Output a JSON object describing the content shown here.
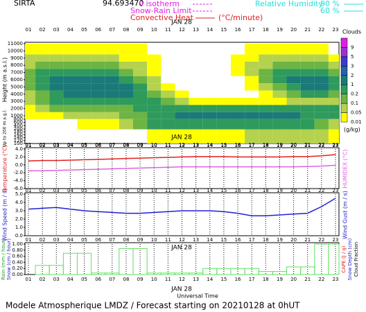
{
  "station": "SIRTA",
  "coords": "94.693470",
  "legend": {
    "isotherm": "0 isotherm",
    "snow_rain": "Snow-Rain Limit",
    "convective": "Convective Heat",
    "convective_unit": "(°C/minute)",
    "rh": "Relative Humidity",
    "rh_high": "90 %",
    "rh_low": "60 %"
  },
  "date": "JAN 28",
  "x_label": "Universal Time",
  "footer": "Modele Atmospherique LMDZ / Forecast starting on 20210128 at 0hUT",
  "chart_data": [
    {
      "type": "heatmap",
      "y_label": "Height (m a.s.l.)",
      "y_label_low": "Up to 200 m a.g.l.",
      "categories": [
        "01",
        "02",
        "03",
        "04",
        "05",
        "06",
        "07",
        "08",
        "09",
        "10",
        "11",
        "12",
        "13",
        "14",
        "15",
        "16",
        "17",
        "18",
        "19",
        "20",
        "21",
        "22",
        "23"
      ],
      "heights": [
        10000,
        9000,
        8000,
        7000,
        6000,
        5000,
        4000,
        3000,
        2000,
        1000,
        600,
        150
      ],
      "values": [
        [
          0.01,
          0.01,
          0.01,
          0.01,
          0.01,
          0.01,
          0.01,
          0.01,
          0.01,
          0,
          0,
          0,
          0,
          0,
          0,
          0,
          0.01,
          0.01,
          0.01,
          0.01,
          0.01,
          0.01,
          0
        ],
        [
          0.05,
          0.05,
          0.05,
          0.05,
          0.05,
          0.05,
          0.05,
          0.01,
          0.01,
          0.01,
          0,
          0,
          0,
          0,
          0,
          0.01,
          0.01,
          0.05,
          0.05,
          0.05,
          0.05,
          0.05,
          0.01
        ],
        [
          0.05,
          0.1,
          0.1,
          0.1,
          0.1,
          0.1,
          0.1,
          0.05,
          0.05,
          0.01,
          0,
          0,
          0,
          0,
          0,
          0.01,
          0.05,
          0.05,
          0.1,
          0.1,
          0.1,
          0.1,
          0.05
        ],
        [
          0.1,
          0.2,
          0.2,
          0.2,
          0.2,
          0.2,
          0.2,
          0.1,
          0.05,
          0.01,
          0,
          0,
          0,
          0,
          0,
          0.01,
          0.05,
          0.1,
          0.2,
          0.2,
          0.2,
          0.2,
          0.1
        ],
        [
          0.1,
          0.2,
          1,
          1,
          1,
          1,
          1,
          0.2,
          0.1,
          0.05,
          0,
          0,
          0,
          0,
          0,
          0,
          0.01,
          0.1,
          0.2,
          1,
          1,
          1,
          0.2
        ],
        [
          0.1,
          0.2,
          1,
          1,
          1,
          1,
          1,
          1,
          0.2,
          0.05,
          0.01,
          0,
          0,
          0,
          0,
          0,
          0.01,
          0.05,
          0.1,
          0.2,
          1,
          1,
          0.2
        ],
        [
          0.05,
          0.1,
          0.2,
          1,
          1,
          1,
          1,
          1,
          0.2,
          0.1,
          0.05,
          0.01,
          0,
          0,
          0,
          0,
          0,
          0.01,
          0.05,
          0.1,
          0.2,
          0.2,
          0.1
        ],
        [
          0.05,
          0.1,
          0.2,
          0.2,
          0.2,
          0.2,
          0.2,
          0.2,
          0.2,
          0.2,
          0.1,
          0.05,
          0.01,
          0.01,
          0.01,
          0.01,
          0.01,
          0.01,
          0.01,
          0.05,
          0.05,
          0.05,
          0.05
        ],
        [
          0.01,
          0.05,
          0.1,
          0.1,
          0.1,
          0.1,
          0.1,
          0.1,
          0.2,
          0.2,
          0.2,
          0.2,
          0.2,
          0.2,
          0.2,
          0.2,
          0.2,
          0.2,
          0.2,
          0.2,
          0.2,
          0.2,
          0.2
        ],
        [
          0.01,
          0.01,
          0.01,
          0.05,
          0.05,
          0.05,
          0.05,
          0.1,
          0.1,
          0.2,
          0.2,
          1,
          1,
          1,
          1,
          1,
          1,
          1,
          1,
          1,
          0.2,
          0.2,
          0.2
        ],
        [
          0,
          0,
          0,
          0,
          0.01,
          0.01,
          0.01,
          0.05,
          0.1,
          0.2,
          0.2,
          0.2,
          0.2,
          0.2,
          0.2,
          0.2,
          0.2,
          0.2,
          0.2,
          0.2,
          0.2,
          0.1,
          0.05
        ],
        [
          0,
          0,
          0,
          0,
          0,
          0,
          0,
          0,
          0,
          0.01,
          0.01,
          0.01,
          0.01,
          0.01,
          0.01,
          0.01,
          0.05,
          0.05,
          0.05,
          0.05,
          0.05,
          0.05,
          0.01
        ]
      ],
      "ylim": [
        100,
        11000
      ],
      "yticks": [
        11000,
        10000,
        9000,
        8000,
        7000,
        6000,
        5000,
        4000,
        3000,
        2000,
        1000,
        800,
        600,
        400,
        200,
        180,
        160,
        140,
        120,
        100
      ],
      "colorbar_title": "Clouds",
      "colorbar_unit": "(g/kg)",
      "levels": [
        0.01,
        0.05,
        0.1,
        0.2,
        1,
        2,
        3,
        5,
        9
      ],
      "colors": [
        "#ffff00",
        "#b4d24e",
        "#6cb443",
        "#2e9a5c",
        "#1a7a78",
        "#2b5fa8",
        "#3a3ad0",
        "#9a30d0",
        "#e020e0"
      ]
    },
    {
      "type": "line",
      "y_label": "Temperature (°C)",
      "y2_label": "HUMIDEX (°C)",
      "categories": [
        "01",
        "02",
        "03",
        "04",
        "05",
        "06",
        "07",
        "08",
        "09",
        "10",
        "11",
        "12",
        "13",
        "14",
        "15",
        "16",
        "17",
        "18",
        "19",
        "20",
        "21",
        "22",
        "23"
      ],
      "series": [
        {
          "name": "Temperature",
          "color": "#e02020",
          "values": [
            1.0,
            1.1,
            1.1,
            1.2,
            1.3,
            1.4,
            1.5,
            1.6,
            1.7,
            1.8,
            1.9,
            2.0,
            2.1,
            2.1,
            2.1,
            2.0,
            2.0,
            2.0,
            2.0,
            2.1,
            2.1,
            2.3,
            2.6
          ]
        },
        {
          "name": "HUMIDEX",
          "color": "#e060e0",
          "values": [
            -1.5,
            -1.5,
            -1.4,
            -1.3,
            -1.2,
            -1.1,
            -1.0,
            -0.9,
            -0.8,
            -0.7,
            -0.6,
            -0.5,
            -0.5,
            -0.5,
            -0.5,
            -0.5,
            -0.5,
            -0.5,
            -0.5,
            -0.5,
            -0.4,
            -0.3,
            -0.1
          ]
        }
      ],
      "ylim": [
        -6,
        4
      ],
      "yticks": [
        {
          "value": 4,
          "label": "4.0"
        },
        {
          "value": 2,
          "label": "2.0"
        },
        {
          "value": 0,
          "label": "0.0"
        },
        {
          "value": -2,
          "label": "-2.0"
        },
        {
          "value": -4,
          "label": "-4.0"
        },
        {
          "value": -6,
          "label": "-6.0"
        }
      ]
    },
    {
      "type": "line",
      "y_label": "Wind Speed (m / s)",
      "y2_label": "Wind Gust (m / s)",
      "categories": [
        "01",
        "02",
        "03",
        "04",
        "05",
        "06",
        "07",
        "08",
        "09",
        "10",
        "11",
        "12",
        "13",
        "14",
        "15",
        "16",
        "17",
        "18",
        "19",
        "20",
        "21",
        "22",
        "23"
      ],
      "series": [
        {
          "name": "Wind Speed",
          "color": "#2020d0",
          "values": [
            3.2,
            3.3,
            3.4,
            3.2,
            3.0,
            2.9,
            2.8,
            2.7,
            2.7,
            2.8,
            2.9,
            3.0,
            3.0,
            3.0,
            2.9,
            2.7,
            2.4,
            2.4,
            2.5,
            2.6,
            2.7,
            3.5,
            4.5
          ]
        }
      ],
      "ylim": [
        0,
        5
      ],
      "yticks": [
        {
          "value": 5,
          "label": "5.0"
        },
        {
          "value": 4,
          "label": "4.0"
        },
        {
          "value": 3,
          "label": "3.0"
        },
        {
          "value": 2,
          "label": "2.0"
        },
        {
          "value": 1,
          "label": "1.0"
        },
        {
          "value": 0,
          "label": "0.0"
        }
      ]
    },
    {
      "type": "bar",
      "y_label": "Rain (mm / hour)",
      "y_label_2": "Snow (cm / hour)",
      "y2_label": "CAPE (J / g)",
      "y2_label_2": "Snow Depth (cm)",
      "y2_label_3": "Cloud Fraction",
      "categories": [
        "01",
        "02",
        "03",
        "04",
        "05",
        "06",
        "07",
        "08",
        "09",
        "10",
        "11",
        "12",
        "13",
        "14",
        "15",
        "16",
        "17",
        "18",
        "19",
        "20",
        "21",
        "22",
        "23"
      ],
      "color": "#60e060",
      "values": [
        0,
        0.3,
        0.3,
        0.7,
        0.7,
        0.05,
        0.05,
        0.85,
        0.85,
        0.05,
        0.05,
        0.05,
        0.05,
        0.2,
        0.2,
        0.2,
        0.2,
        0.1,
        0.1,
        0.25,
        0.25,
        1.0,
        1.0
      ],
      "ylim": [
        0,
        1
      ],
      "yticks": [
        {
          "value": 1,
          "label": "1.00"
        },
        {
          "value": 0.8,
          "label": "0.80"
        },
        {
          "value": 0.6,
          "label": "0.60"
        },
        {
          "value": 0.4,
          "label": "0.40"
        },
        {
          "value": 0.2,
          "label": "0.20"
        },
        {
          "value": 0,
          "label": "0.00"
        }
      ]
    }
  ]
}
